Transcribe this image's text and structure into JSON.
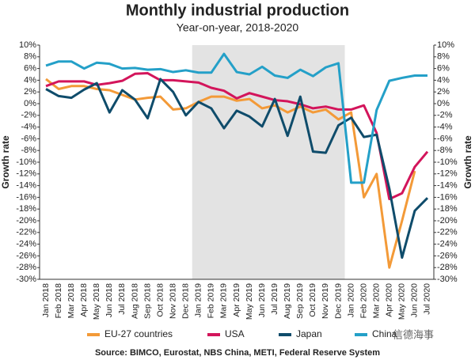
{
  "chart_data": {
    "type": "line",
    "title": "Monthly industrial production",
    "subtitle": "Year-on-year, 2018-2020",
    "ylabel": "Growth rate",
    "y2label": "Growth rate",
    "source": "Source: BIMCO, Eurostat, NBS China, METI, Federal Reserve System",
    "watermark": "信德海事",
    "categories": [
      "Jan 2018",
      "Feb 2018",
      "Mar 2018",
      "Apr 2018",
      "May 2018",
      "Jun 2018",
      "Jul 2018",
      "Aug 2018",
      "Sep 2018",
      "Oct 2018",
      "Nov 2018",
      "Dec 2018",
      "Jan 2019",
      "Feb 2019",
      "Mar 2019",
      "Apr 2019",
      "May 2019",
      "Jun 2019",
      "Jul 2019",
      "Aug 2019",
      "Sep 2019",
      "Oct 2019",
      "Nov 2019",
      "Dec 2019",
      "Jan 2020",
      "Feb 2020",
      "Mar 2020",
      "Apr 2020",
      "May 2020",
      "Jun 2020",
      "Jul 2020"
    ],
    "shaded_categories": [
      12,
      23
    ],
    "shade_color": "#e3e3e3",
    "series": [
      {
        "name": "EU-27 countries",
        "color": "#f39a38",
        "values": [
          4.2,
          2.5,
          3.0,
          3.0,
          2.5,
          2.3,
          1.5,
          0.7,
          1.0,
          1.2,
          -1.0,
          -0.8,
          0.3,
          1.2,
          1.2,
          0.5,
          0.8,
          -0.8,
          -0.3,
          -1.5,
          -0.5,
          -1.5,
          -1.0,
          -2.7,
          -1.5,
          -16,
          -12,
          -28,
          -20,
          -11.5,
          null
        ]
      },
      {
        "name": "USA",
        "color": "#d3155b",
        "values": [
          3.0,
          3.8,
          3.8,
          3.8,
          3.2,
          3.5,
          3.9,
          5.1,
          5.2,
          4.0,
          4.0,
          3.8,
          3.6,
          2.7,
          2.2,
          0.9,
          1.8,
          1.2,
          0.6,
          0.4,
          -0.1,
          -0.8,
          -0.5,
          -1.0,
          -1.0,
          -0.3,
          -5.0,
          -16.3,
          -15.3,
          -10.8,
          -8.2
        ]
      },
      {
        "name": "Japan",
        "color": "#0f4c6b",
        "values": [
          2.5,
          1.3,
          1.0,
          2.4,
          3.5,
          -1.5,
          2.3,
          0.7,
          -2.5,
          4.2,
          2.0,
          -2.0,
          0.3,
          -0.8,
          -4.2,
          -1.2,
          -2.2,
          -3.9,
          0.8,
          -5.5,
          1.2,
          -8.2,
          -8.4,
          -3.7,
          -2.4,
          -5.7,
          -5.3,
          -14.5,
          -26.3,
          -18.3,
          -16.1
        ]
      },
      {
        "name": "China",
        "color": "#24a0c8",
        "values": [
          6.5,
          7.2,
          7.2,
          6.0,
          7.0,
          6.8,
          6.0,
          6.1,
          5.8,
          5.9,
          5.4,
          5.7,
          5.3,
          5.3,
          8.5,
          5.4,
          5.0,
          6.3,
          4.8,
          4.4,
          5.8,
          4.7,
          6.2,
          6.9,
          -13.5,
          -13.5,
          -1.1,
          3.9,
          4.4,
          4.8,
          4.8
        ]
      }
    ],
    "ylim": [
      -30,
      10
    ],
    "yticks": [
      {
        "value": 10,
        "label": "10%"
      },
      {
        "value": 8,
        "label": "8%"
      },
      {
        "value": 6,
        "label": "6%"
      },
      {
        "value": 4,
        "label": "4%"
      },
      {
        "value": 2,
        "label": "2%"
      },
      {
        "value": 0,
        "label": "0%"
      },
      {
        "value": -2,
        "label": "-2%"
      },
      {
        "value": -4,
        "label": "-4%"
      },
      {
        "value": -6,
        "label": "-6%"
      },
      {
        "value": -8,
        "label": "-8%"
      },
      {
        "value": -10,
        "label": "-10%"
      },
      {
        "value": -12,
        "label": "-12%"
      },
      {
        "value": -14,
        "label": "-14%"
      },
      {
        "value": -16,
        "label": "-16%"
      },
      {
        "value": -18,
        "label": "-18%"
      },
      {
        "value": -20,
        "label": "-20%"
      },
      {
        "value": -22,
        "label": "-22%"
      },
      {
        "value": -24,
        "label": "-24%"
      },
      {
        "value": -26,
        "label": "-26%"
      },
      {
        "value": -28,
        "label": "-28%"
      },
      {
        "value": -30,
        "label": "-30%"
      }
    ],
    "y2lim": [
      -30,
      10
    ],
    "y2ticks": [
      {
        "value": 10,
        "label": "10%"
      },
      {
        "value": 8,
        "label": "8%"
      },
      {
        "value": 6,
        "label": "6%"
      },
      {
        "value": 4,
        "label": "4%"
      },
      {
        "value": 2,
        "label": "2%"
      },
      {
        "value": 0,
        "label": "0%"
      },
      {
        "value": -2,
        "label": "-2%"
      },
      {
        "value": -4,
        "label": "-4%"
      },
      {
        "value": -6,
        "label": "-6%"
      },
      {
        "value": -8,
        "label": "-8%"
      },
      {
        "value": -10,
        "label": "-10%"
      },
      {
        "value": -12,
        "label": "-12%"
      },
      {
        "value": -14,
        "label": "-14%"
      },
      {
        "value": -16,
        "label": "-16%"
      },
      {
        "value": -18,
        "label": "-18%"
      },
      {
        "value": -20,
        "label": "-20%"
      },
      {
        "value": -22,
        "label": "-22%"
      },
      {
        "value": -24,
        "label": "-24%"
      },
      {
        "value": -26,
        "label": "-26%"
      },
      {
        "value": -28,
        "label": "-28%"
      },
      {
        "value": -30,
        "label": "-30%"
      }
    ],
    "grid": false,
    "legend": "bottom"
  }
}
